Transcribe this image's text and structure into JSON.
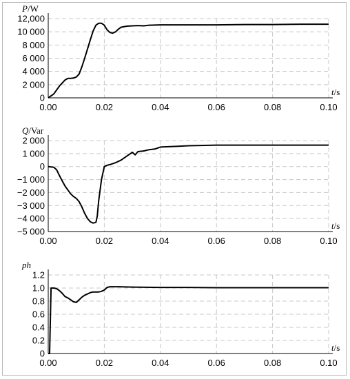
{
  "chart_data": [
    {
      "type": "line",
      "title": "",
      "ylabel": "P",
      "ylabel_unit": "/W",
      "xlabel": "t",
      "xlabel_unit": "/s",
      "xlim": [
        0,
        0.1
      ],
      "ylim": [
        0,
        12000
      ],
      "grid": true,
      "x_ticks": [
        "0.00",
        "0.02",
        "0.04",
        "0.06",
        "0.08",
        "0.10"
      ],
      "y_ticks": [
        "0",
        "2 000",
        "4 000",
        "6 000",
        "8 000",
        "10 000",
        "12,000"
      ],
      "y_tick_values": [
        0,
        2000,
        4000,
        6000,
        8000,
        10000,
        12000
      ],
      "series": [
        {
          "x": [
            0,
            0.002,
            0.004,
            0.006,
            0.007,
            0.008,
            0.009,
            0.01,
            0.011,
            0.012,
            0.013,
            0.014,
            0.015,
            0.016,
            0.017,
            0.018,
            0.019,
            0.02,
            0.021,
            0.022,
            0.023,
            0.024,
            0.025,
            0.026,
            0.028,
            0.03,
            0.032,
            0.034,
            0.036,
            0.04,
            0.05,
            0.06,
            0.07,
            0.08,
            0.09,
            0.1
          ],
          "values": [
            0,
            600,
            1800,
            2700,
            2950,
            2950,
            3000,
            3150,
            3600,
            4700,
            6000,
            7400,
            8800,
            10100,
            11000,
            11300,
            11300,
            11000,
            10300,
            9900,
            9800,
            10000,
            10400,
            10700,
            10850,
            10900,
            10950,
            10900,
            11000,
            11050,
            11050,
            11050,
            11100,
            11100,
            11150,
            11150
          ]
        }
      ]
    },
    {
      "type": "line",
      "title": "",
      "ylabel": "Q",
      "ylabel_unit": "/Var",
      "xlabel": "t",
      "xlabel_unit": "/s",
      "xlim": [
        0,
        0.1
      ],
      "ylim": [
        -5000,
        2000
      ],
      "grid": true,
      "x_ticks": [
        "0.00",
        "0.02",
        "0.04",
        "0.06",
        "0.08",
        "0.10"
      ],
      "y_ticks": [
        "2 000",
        "1 000",
        "0",
        "−1 000",
        "−2 000",
        "−3 000",
        "−4 000",
        "−5 000"
      ],
      "y_tick_values": [
        2000,
        1000,
        0,
        -1000,
        -2000,
        -3000,
        -4000,
        -5000
      ],
      "series": [
        {
          "x": [
            0,
            0.002,
            0.003,
            0.004,
            0.005,
            0.006,
            0.007,
            0.008,
            0.009,
            0.01,
            0.011,
            0.012,
            0.013,
            0.014,
            0.015,
            0.016,
            0.017,
            0.0175,
            0.018,
            0.019,
            0.02,
            0.021,
            0.022,
            0.024,
            0.026,
            0.028,
            0.03,
            0.031,
            0.032,
            0.034,
            0.036,
            0.038,
            0.04,
            0.045,
            0.05,
            0.06,
            0.07,
            0.08,
            0.09,
            0.1
          ],
          "values": [
            0,
            -50,
            -250,
            -700,
            -1100,
            -1500,
            -1800,
            -2100,
            -2300,
            -2450,
            -2700,
            -3100,
            -3600,
            -4000,
            -4250,
            -4350,
            -4300,
            -3800,
            -2600,
            -1000,
            0,
            100,
            150,
            300,
            500,
            800,
            1100,
            900,
            1150,
            1200,
            1300,
            1350,
            1500,
            1550,
            1600,
            1650,
            1650,
            1650,
            1650,
            1650
          ]
        }
      ]
    },
    {
      "type": "line",
      "title": "",
      "ylabel": "ph",
      "ylabel_unit": "",
      "xlabel": "t",
      "xlabel_unit": "/s",
      "xlim": [
        0,
        0.1
      ],
      "ylim": [
        0,
        1.2
      ],
      "grid": true,
      "x_ticks": [
        "0.00",
        "0.02",
        "0.04",
        "0.06",
        "0.08",
        "0.10"
      ],
      "y_ticks": [
        "0",
        "0.2",
        "0.4",
        "0.6",
        "0.8",
        "1.0",
        "1.2"
      ],
      "y_tick_values": [
        0,
        0.2,
        0.4,
        0.6,
        0.8,
        1.0,
        1.2
      ],
      "series": [
        {
          "x": [
            0,
            0.0005,
            0.001,
            0.002,
            0.003,
            0.004,
            0.005,
            0.006,
            0.007,
            0.008,
            0.009,
            0.01,
            0.011,
            0.012,
            0.013,
            0.014,
            0.015,
            0.016,
            0.017,
            0.018,
            0.019,
            0.02,
            0.021,
            0.022,
            0.025,
            0.03,
            0.04,
            0.05,
            0.06,
            0.07,
            0.08,
            0.09,
            0.1
          ],
          "values": [
            0,
            0,
            1.0,
            1.0,
            0.99,
            0.96,
            0.92,
            0.87,
            0.85,
            0.82,
            0.79,
            0.78,
            0.82,
            0.86,
            0.89,
            0.91,
            0.93,
            0.94,
            0.94,
            0.94,
            0.95,
            0.97,
            1.01,
            1.02,
            1.02,
            1.015,
            1.01,
            1.01,
            1.005,
            1.005,
            1.005,
            1.005,
            1.005
          ]
        }
      ]
    }
  ]
}
